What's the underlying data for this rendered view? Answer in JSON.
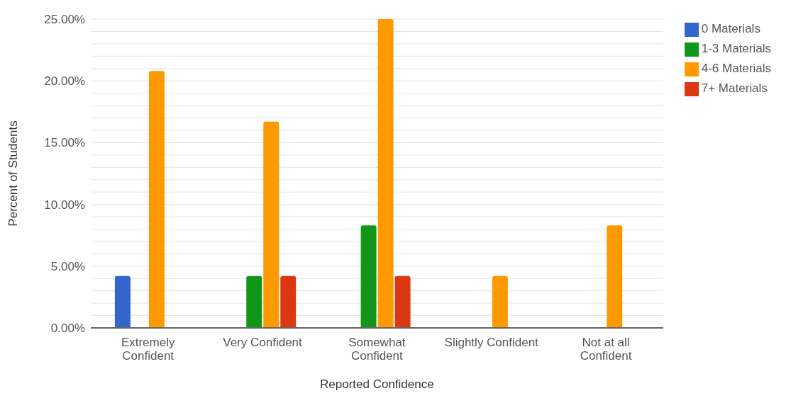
{
  "chart_data": {
    "type": "bar",
    "xlabel": "Reported Confidence",
    "ylabel": "Percent of Students",
    "categories": [
      "Extremely Confident",
      "Very Confident",
      "Somewhat Confident",
      "Slightly Confident",
      "Not at all Confident"
    ],
    "series": [
      {
        "name": "0 Materials",
        "color": "#3366cc",
        "values": [
          4.2,
          0,
          0,
          0,
          0
        ]
      },
      {
        "name": "1-3 Materials",
        "color": "#109618",
        "values": [
          0,
          4.2,
          8.3,
          0,
          0
        ]
      },
      {
        "name": "4-6 Materials",
        "color": "#ff9900",
        "values": [
          20.8,
          16.7,
          25,
          4.2,
          8.3
        ]
      },
      {
        "name": "7+ Materials",
        "color": "#dc3912",
        "values": [
          0,
          4.2,
          4.2,
          0,
          0
        ]
      }
    ],
    "ylim": [
      0,
      25
    ],
    "yticks": [
      {
        "value": 0,
        "label": "0.00%"
      },
      {
        "value": 1,
        "label": null
      },
      {
        "value": 2,
        "label": null
      },
      {
        "value": 3,
        "label": null
      },
      {
        "value": 4,
        "label": null
      },
      {
        "value": 5,
        "label": "5.00%"
      },
      {
        "value": 6,
        "label": null
      },
      {
        "value": 7,
        "label": null
      },
      {
        "value": 8,
        "label": null
      },
      {
        "value": 9,
        "label": null
      },
      {
        "value": 10,
        "label": "10.00%"
      },
      {
        "value": 11,
        "label": null
      },
      {
        "value": 12,
        "label": null
      },
      {
        "value": 13,
        "label": null
      },
      {
        "value": 14,
        "label": null
      },
      {
        "value": 15,
        "label": "15.00%"
      },
      {
        "value": 16,
        "label": null
      },
      {
        "value": 17,
        "label": null
      },
      {
        "value": 18,
        "label": null
      },
      {
        "value": 19,
        "label": null
      },
      {
        "value": 20,
        "label": "20.00%"
      },
      {
        "value": 21,
        "label": null
      },
      {
        "value": 22,
        "label": null
      },
      {
        "value": 23,
        "label": null
      },
      {
        "value": 24,
        "label": null
      },
      {
        "value": 25,
        "label": "25.00%"
      }
    ],
    "grid": "y",
    "legend": "top right"
  }
}
